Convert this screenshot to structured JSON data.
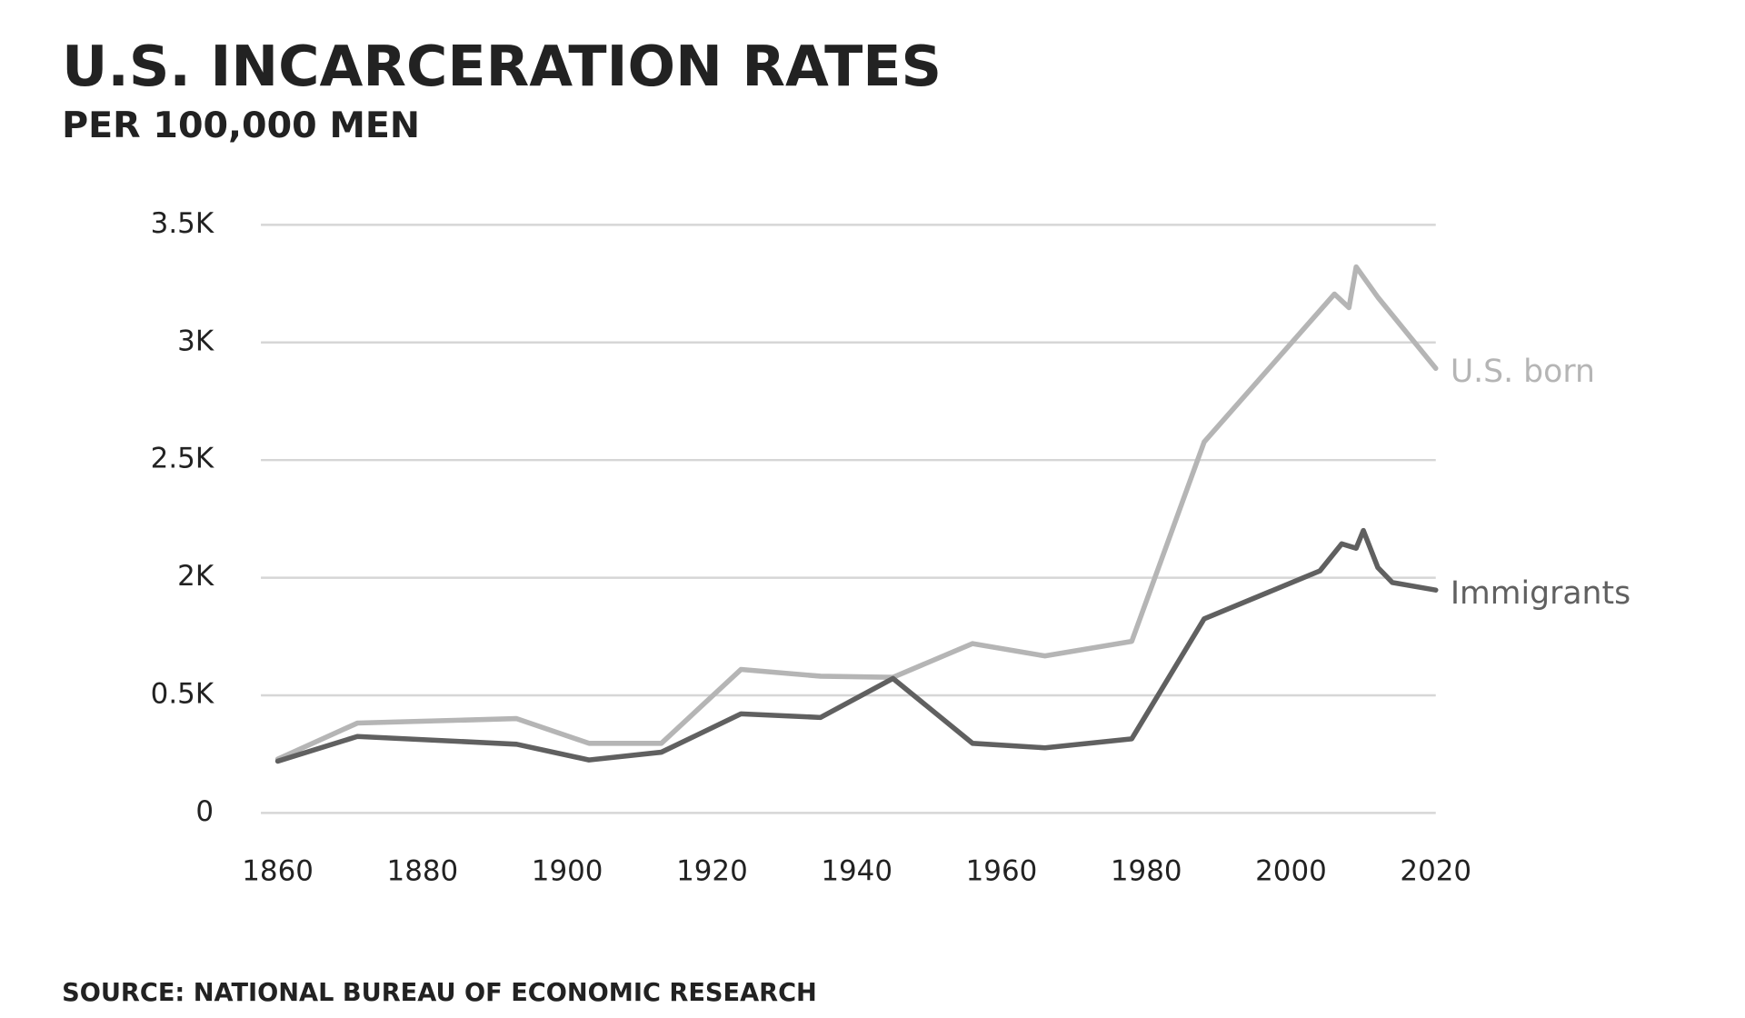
{
  "chart_data": {
    "type": "line",
    "title": "U.S. INCARCERATION RATES",
    "subtitle": "PER 100,000 MEN",
    "source": "SOURCE: NATIONAL BUREAU OF ECONOMIC RESEARCH",
    "xlim": [
      1860,
      2020
    ],
    "xticks": [
      1860,
      1880,
      1900,
      1920,
      1940,
      1960,
      1980,
      2000,
      2020
    ],
    "ylim": [
      0,
      3500
    ],
    "yticks": [
      0,
      {
        "value": 500,
        "label": "0.5K"
      },
      {
        "value": 2000,
        "label": "2K"
      },
      {
        "value": 2500,
        "label": "2.5K"
      },
      {
        "value": 3000,
        "label": "3K"
      },
      {
        "value": 3500,
        "label": "3.5K"
      }
    ],
    "grid": true,
    "series": [
      {
        "name": "U.S. born",
        "color": "#b5b5b5",
        "x": [
          1860,
          1871,
          1893,
          1903,
          1913,
          1924,
          1935,
          1945,
          1956,
          1966,
          1978,
          1988,
          2006,
          2008,
          2009,
          2012,
          2020
        ],
        "values": [
          229,
          382,
          401,
          296,
          296,
          830,
          744,
          730,
          1160,
          1002,
          1188,
          2577,
          3206,
          3148,
          3321,
          3192,
          2890
        ]
      },
      {
        "name": "Immigrants",
        "color": "#606060",
        "x": [
          1860,
          1871,
          1893,
          1903,
          1913,
          1924,
          1935,
          1945,
          1956,
          1966,
          1978,
          1988,
          2004,
          2007,
          2009,
          2010,
          2012,
          2014,
          2020
        ],
        "values": [
          220,
          325,
          292,
          225,
          258,
          421,
          406,
          715,
          296,
          277,
          315,
          1475,
          2029,
          2144,
          2125,
          2201,
          2043,
          1938,
          1842
        ]
      }
    ]
  }
}
